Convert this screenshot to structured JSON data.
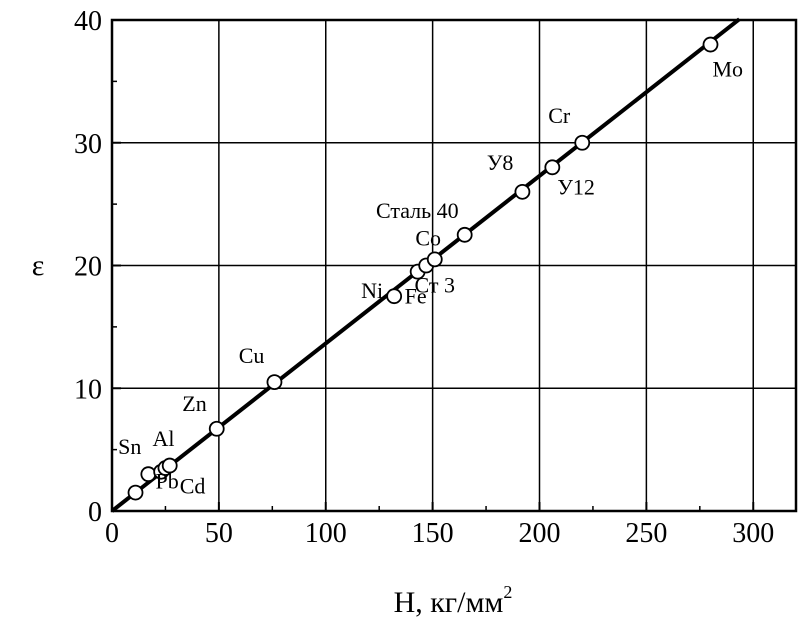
{
  "chart_data": {
    "type": "scatter",
    "xlabel": "H, кг/мм",
    "xlabel_superscript": "2",
    "ylabel": "ε",
    "xlim": [
      0,
      320
    ],
    "ylim": [
      0,
      40
    ],
    "xticks": [
      0,
      50,
      100,
      150,
      200,
      250,
      300
    ],
    "yticks": [
      0,
      10,
      20,
      30,
      40
    ],
    "grid": true,
    "fit_line": {
      "slope": 0.1365,
      "intercept": 0,
      "x": [
        0,
        293.5
      ]
    },
    "points": [
      {
        "label": "Pb",
        "x": 11,
        "y": 1.5
      },
      {
        "label": "Sn",
        "x": 17,
        "y": 3.0
      },
      {
        "label": "",
        "x": 23,
        "y": 3.2
      },
      {
        "label": "Al",
        "x": 25,
        "y": 3.5
      },
      {
        "label": "Cd",
        "x": 27,
        "y": 3.7
      },
      {
        "label": "Zn",
        "x": 49,
        "y": 6.7
      },
      {
        "label": "Cu",
        "x": 76,
        "y": 10.5
      },
      {
        "label": "Ni",
        "x": 132,
        "y": 17.5
      },
      {
        "label": "Fe",
        "x": 143,
        "y": 19.5
      },
      {
        "label": "Co",
        "x": 147,
        "y": 20.0
      },
      {
        "label": "Ст 3",
        "x": 151,
        "y": 20.5
      },
      {
        "label": "Сталь 40",
        "x": 165,
        "y": 22.5
      },
      {
        "label": "У8",
        "x": 192,
        "y": 26.0
      },
      {
        "label": "У12",
        "x": 206,
        "y": 28.0
      },
      {
        "label": "Cr",
        "x": 220,
        "y": 30.0
      },
      {
        "label": "Mo",
        "x": 280,
        "y": 38.0
      }
    ]
  }
}
